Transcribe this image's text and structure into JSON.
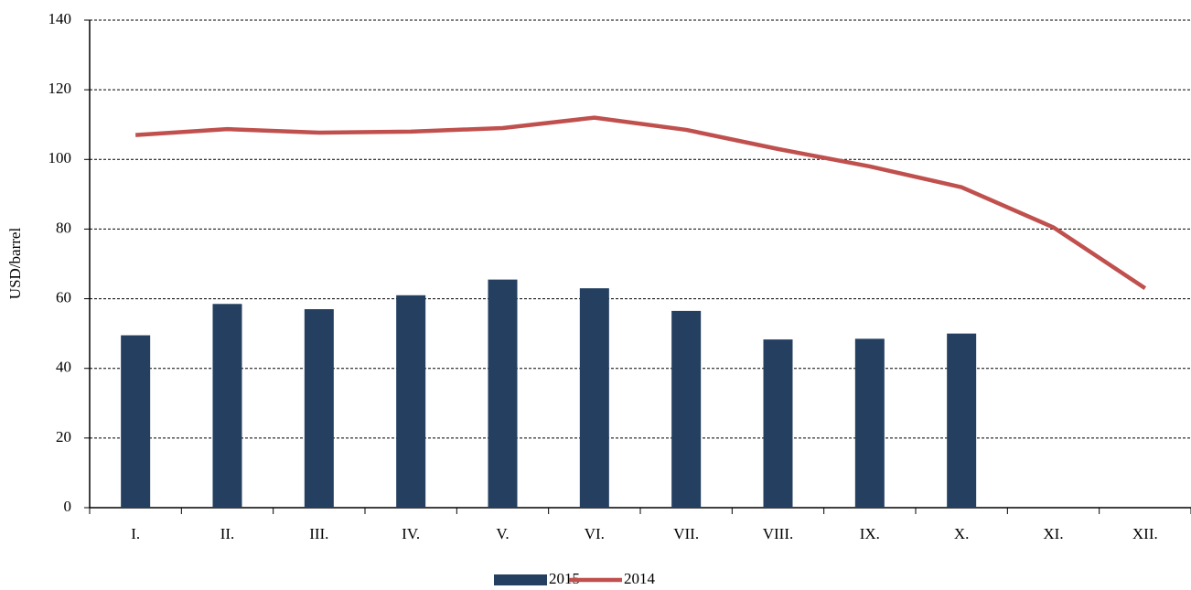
{
  "chart_data": {
    "type": "bar",
    "categories": [
      "I.",
      "II.",
      "III.",
      "IV.",
      "V.",
      "VI.",
      "VII.",
      "VIII.",
      "IX.",
      "X.",
      "XI.",
      "XII."
    ],
    "y_label": "USD/barrel",
    "series": [
      {
        "name": "2015",
        "type": "bar",
        "color": "#243f60",
        "values": [
          49.5,
          58.5,
          57,
          61,
          65.5,
          63,
          56.5,
          48.3,
          48.5,
          50,
          null,
          null
        ]
      },
      {
        "name": "2014",
        "type": "line",
        "color": "#c0504d",
        "values": [
          107,
          108.7,
          107.7,
          108,
          109,
          112,
          108.5,
          103,
          98,
          92,
          80.5,
          63
        ]
      }
    ],
    "ylim": [
      0,
      140
    ],
    "yticks": [
      0,
      20,
      40,
      60,
      80,
      100,
      120,
      140
    ],
    "grid": true,
    "legend": "bottom"
  }
}
